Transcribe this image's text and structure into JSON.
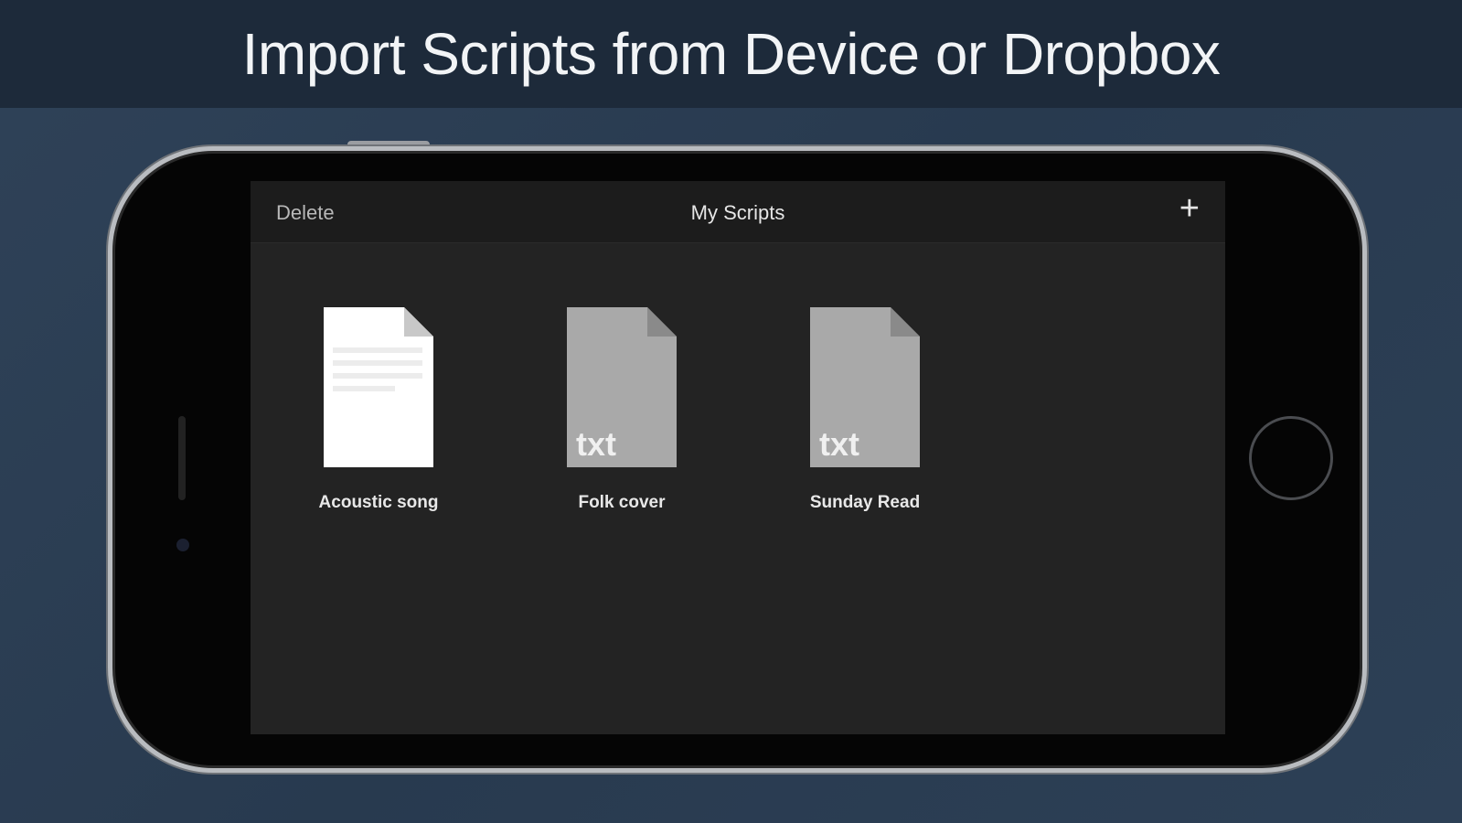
{
  "banner": {
    "title": "Import Scripts from Device or Dropbox"
  },
  "nav": {
    "delete_label": "Delete",
    "title": "My Scripts",
    "add_icon": "plus-icon",
    "add_label": "+"
  },
  "files": [
    {
      "name": "Acoustic song",
      "type": "document",
      "ext": ""
    },
    {
      "name": "Folk cover",
      "type": "txt",
      "ext": "txt"
    },
    {
      "name": "Sunday Read",
      "type": "txt",
      "ext": "txt"
    }
  ],
  "colors": {
    "background": "#2b3d52",
    "banner": "#1d2a3a",
    "screen": "#232323",
    "txt_icon": "#a9a9a9"
  }
}
